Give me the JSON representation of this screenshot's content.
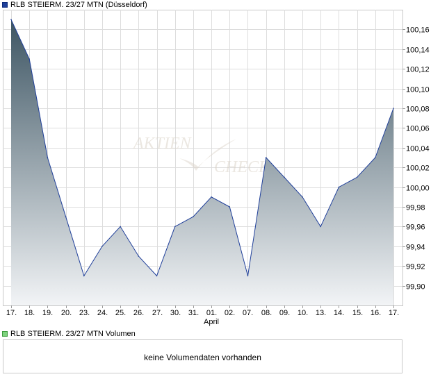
{
  "legend": {
    "price_label": "RLB STEIERM. 23/27 MTN (Düsseldorf)",
    "volume_label": "RLB STEIERM. 23/27 MTN Volumen"
  },
  "volume_panel": {
    "message": "keine Volumendaten vorhanden"
  },
  "watermark": {
    "line1": "AKTIEN",
    "line2": "CHECK"
  },
  "chart_data": {
    "type": "area",
    "categories": [
      "17.",
      "18.",
      "19.",
      "20.",
      "23.",
      "24.",
      "25.",
      "26.",
      "27.",
      "30.",
      "31.",
      "01.",
      "02.",
      "07.",
      "08.",
      "09.",
      "10.",
      "13.",
      "14.",
      "15.",
      "16.",
      "17."
    ],
    "month_label": "April",
    "month_label_under": "01.",
    "values": [
      100.17,
      100.13,
      100.03,
      99.97,
      99.91,
      99.94,
      99.96,
      99.93,
      99.91,
      99.96,
      99.97,
      99.99,
      99.98,
      99.91,
      100.03,
      100.01,
      99.99,
      99.96,
      100.0,
      100.01,
      100.03,
      100.08
    ],
    "y_ticks": [
      "100,16",
      "100,14",
      "100,12",
      "100,10",
      "100,08",
      "100,06",
      "100,04",
      "100,02",
      "100,00",
      "99,98",
      "99,96",
      "99,94",
      "99,92",
      "99,90"
    ],
    "ylim": [
      99.88,
      100.18
    ],
    "y_axis_position": "right",
    "grid": true,
    "colors": {
      "line": "#1f3f9a",
      "fill_top": "#3d5563",
      "fill_bottom": "#f2f4f6",
      "grid": "#dddddd",
      "frame": "#c8c8c8"
    }
  }
}
